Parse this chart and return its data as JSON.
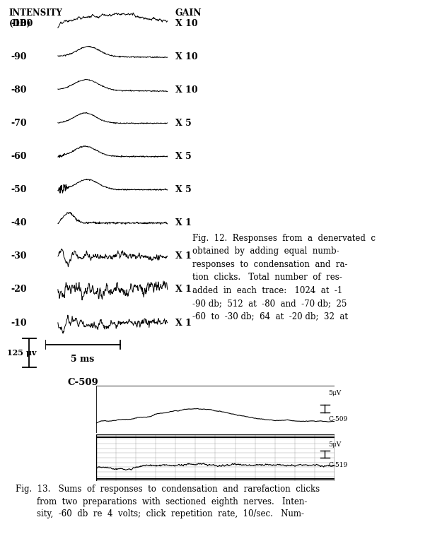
{
  "background_color": "#ffffff",
  "intensity_labels": [
    "-100",
    "-90",
    "-80",
    "-70",
    "-60",
    "-50",
    "-40",
    "-30",
    "-20",
    "-10"
  ],
  "gain_labels": [
    "X 10",
    "X 10",
    "X 10",
    "X 5",
    "X 5",
    "X 5",
    "X 1",
    "X 1",
    "X 1",
    "X 1"
  ],
  "header_intensity": "INTENSITY\n(DB)",
  "header_gain": "GAIN",
  "scale_label_uv": "125 μv",
  "scale_label_ms": "5 ms",
  "label_c509_top": "C-509",
  "fig12_caption_line1": "Fig.  12.  Responses  from  a  denervated  c",
  "fig12_caption": "Fig.  12.  Responses  from  a  denervated  cochlea\nobtained  by  adding  equal  numb-\nresponses  to  condensation  and  ra-\ntion  clicks.   Total  number  of  res-\nadded  in  each  trace:   1024  at  -1\n-90 db;  512  at  -80  and  -70 db;  25\n-60  to  -30 db;  64  at  -20 db;  32  at",
  "fig13_caption": "Fig.  13.   Sums  of  responses  to  condensation  and  rarefaction  clicks\n        from  two  preparations  with  sectioned  eighth  nerves.   Inten-\n        sity,  -60  db  re  4  volts;  click  repetition  rate,  10/sec.   Num-",
  "label_c509_bottom": "C-509",
  "label_c519": "C-519",
  "label_5uv_top": "5μV",
  "label_5uv_bottom": "5μV"
}
